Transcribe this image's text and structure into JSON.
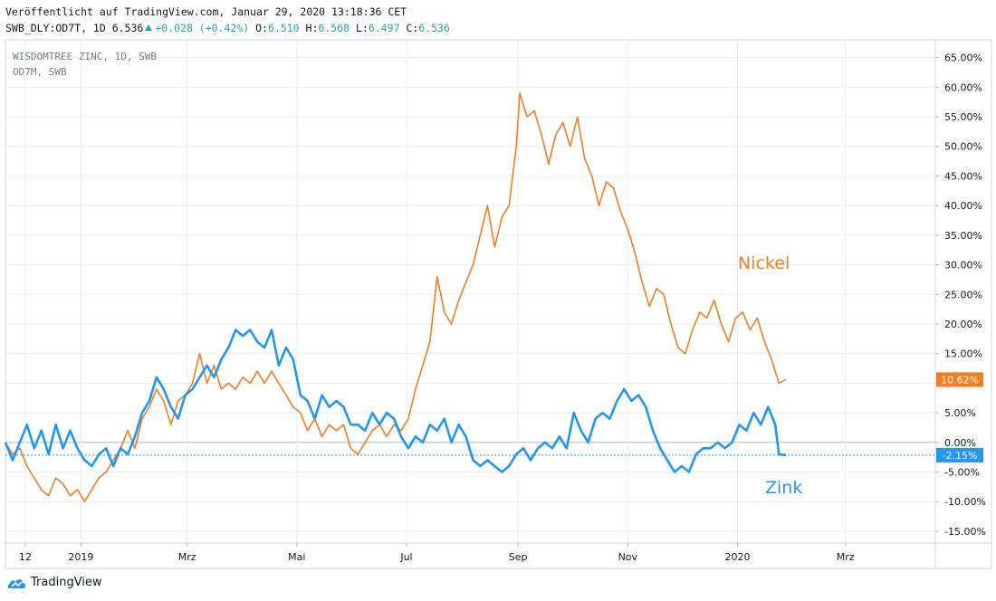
{
  "header": {
    "published": "Veröffentlicht auf TradingView.com, Januar 29, 2020 13:18:36 CET",
    "symbol_line": "SWB_DLY:OD7T, 1D 6.536",
    "change": "+0.028 (+0.42%)",
    "o_label": "O:",
    "o_value": "6.510",
    "h_label": "H:",
    "h_value": "6.568",
    "l_label": "L:",
    "l_value": "6.497",
    "c_label": "C:",
    "c_value": "6.536"
  },
  "legend": {
    "line1": "WISDOMTREE ZINC, 1D, SWB",
    "line2": "OD7M, SWB"
  },
  "brand": {
    "name": "TradingView"
  },
  "colors": {
    "nickel": "#f57c1f",
    "zink": "#2196f3",
    "grid": "#e9ecf2",
    "axis_text": "#131722",
    "baseline": "#b2b5be"
  },
  "chart_data": {
    "type": "line",
    "title": "",
    "x_axis": {
      "start": "2018-11-20",
      "end": "2020-04-20",
      "ticks": [
        {
          "date": "2018-12-01",
          "label": "12"
        },
        {
          "date": "2019-01-01",
          "label": "2019"
        },
        {
          "date": "2019-03-01",
          "label": "Mrz"
        },
        {
          "date": "2019-05-01",
          "label": "Mai"
        },
        {
          "date": "2019-07-01",
          "label": "Jul"
        },
        {
          "date": "2019-09-01",
          "label": "Sep"
        },
        {
          "date": "2019-11-01",
          "label": "Nov"
        },
        {
          "date": "2020-01-01",
          "label": "2020"
        },
        {
          "date": "2020-03-01",
          "label": "Mrz"
        }
      ]
    },
    "y_axis": {
      "unit": "%",
      "range": [
        -17,
        68
      ],
      "ticks": [
        65,
        60,
        55,
        50,
        45,
        40,
        35,
        30,
        25,
        20,
        15,
        10,
        5,
        0,
        -5,
        -10,
        -15
      ],
      "tick_labels": [
        "65.00%",
        "60.00%",
        "55.00%",
        "50.00%",
        "45.00%",
        "40.00%",
        "35.00%",
        "30.00%",
        "25.00%",
        "20.00%",
        "15.00%",
        "10.00%",
        "5.00%",
        "0.00%",
        "-5.00%",
        "-10.00%",
        "-15.00%"
      ]
    },
    "grid": true,
    "series": [
      {
        "name": "Nickel",
        "last_label": "10.62%",
        "points": [
          [
            "2018-11-20",
            0
          ],
          [
            "2018-11-24",
            -2
          ],
          [
            "2018-11-28",
            -1
          ],
          [
            "2018-12-02",
            -4
          ],
          [
            "2018-12-06",
            -6
          ],
          [
            "2018-12-10",
            -8
          ],
          [
            "2018-12-14",
            -9
          ],
          [
            "2018-12-18",
            -6
          ],
          [
            "2018-12-22",
            -7
          ],
          [
            "2018-12-26",
            -9
          ],
          [
            "2018-12-30",
            -8
          ],
          [
            "2019-01-03",
            -10
          ],
          [
            "2019-01-07",
            -8
          ],
          [
            "2019-01-11",
            -6
          ],
          [
            "2019-01-15",
            -5
          ],
          [
            "2019-01-19",
            -3
          ],
          [
            "2019-01-23",
            -1
          ],
          [
            "2019-01-27",
            2
          ],
          [
            "2019-01-31",
            -1
          ],
          [
            "2019-02-04",
            4
          ],
          [
            "2019-02-08",
            6
          ],
          [
            "2019-02-12",
            9
          ],
          [
            "2019-02-16",
            7
          ],
          [
            "2019-02-20",
            3
          ],
          [
            "2019-02-24",
            7
          ],
          [
            "2019-02-28",
            8
          ],
          [
            "2019-03-04",
            10
          ],
          [
            "2019-03-08",
            15
          ],
          [
            "2019-03-12",
            10
          ],
          [
            "2019-03-16",
            13
          ],
          [
            "2019-03-20",
            9
          ],
          [
            "2019-03-24",
            10
          ],
          [
            "2019-03-28",
            9
          ],
          [
            "2019-04-01",
            11
          ],
          [
            "2019-04-05",
            10
          ],
          [
            "2019-04-09",
            12
          ],
          [
            "2019-04-13",
            10
          ],
          [
            "2019-04-17",
            12
          ],
          [
            "2019-04-21",
            10
          ],
          [
            "2019-04-25",
            8
          ],
          [
            "2019-04-29",
            6
          ],
          [
            "2019-05-03",
            5
          ],
          [
            "2019-05-07",
            2
          ],
          [
            "2019-05-11",
            4
          ],
          [
            "2019-05-15",
            1
          ],
          [
            "2019-05-19",
            3
          ],
          [
            "2019-05-23",
            2
          ],
          [
            "2019-05-27",
            3
          ],
          [
            "2019-05-31",
            -1
          ],
          [
            "2019-06-04",
            -2
          ],
          [
            "2019-06-08",
            0
          ],
          [
            "2019-06-12",
            2
          ],
          [
            "2019-06-16",
            3
          ],
          [
            "2019-06-20",
            1
          ],
          [
            "2019-06-24",
            3
          ],
          [
            "2019-06-28",
            2
          ],
          [
            "2019-07-02",
            4
          ],
          [
            "2019-07-06",
            9
          ],
          [
            "2019-07-10",
            13
          ],
          [
            "2019-07-14",
            17
          ],
          [
            "2019-07-18",
            28
          ],
          [
            "2019-07-22",
            22
          ],
          [
            "2019-07-26",
            20
          ],
          [
            "2019-07-30",
            24
          ],
          [
            "2019-08-03",
            27
          ],
          [
            "2019-08-07",
            30
          ],
          [
            "2019-08-11",
            35
          ],
          [
            "2019-08-15",
            40
          ],
          [
            "2019-08-19",
            33
          ],
          [
            "2019-08-23",
            38
          ],
          [
            "2019-08-27",
            40
          ],
          [
            "2019-08-31",
            50
          ],
          [
            "2019-09-02",
            59
          ],
          [
            "2019-09-06",
            55
          ],
          [
            "2019-09-10",
            56
          ],
          [
            "2019-09-14",
            52
          ],
          [
            "2019-09-18",
            47
          ],
          [
            "2019-09-22",
            52
          ],
          [
            "2019-09-26",
            54
          ],
          [
            "2019-09-30",
            50
          ],
          [
            "2019-10-04",
            55
          ],
          [
            "2019-10-08",
            48
          ],
          [
            "2019-10-12",
            45
          ],
          [
            "2019-10-16",
            40
          ],
          [
            "2019-10-20",
            44
          ],
          [
            "2019-10-24",
            43
          ],
          [
            "2019-10-28",
            39
          ],
          [
            "2019-11-01",
            36
          ],
          [
            "2019-11-05",
            32
          ],
          [
            "2019-11-09",
            27
          ],
          [
            "2019-11-13",
            23
          ],
          [
            "2019-11-17",
            26
          ],
          [
            "2019-11-21",
            25
          ],
          [
            "2019-11-25",
            20
          ],
          [
            "2019-11-29",
            16
          ],
          [
            "2019-12-03",
            15
          ],
          [
            "2019-12-07",
            19
          ],
          [
            "2019-12-11",
            22
          ],
          [
            "2019-12-15",
            21
          ],
          [
            "2019-12-19",
            24
          ],
          [
            "2019-12-23",
            20
          ],
          [
            "2019-12-27",
            17
          ],
          [
            "2019-12-31",
            21
          ],
          [
            "2020-01-04",
            22
          ],
          [
            "2020-01-08",
            19
          ],
          [
            "2020-01-12",
            21
          ],
          [
            "2020-01-16",
            17
          ],
          [
            "2020-01-20",
            14
          ],
          [
            "2020-01-24",
            10
          ],
          [
            "2020-01-28",
            10.62
          ]
        ]
      },
      {
        "name": "Zink",
        "last_label": "-2.15%",
        "points": [
          [
            "2018-11-20",
            0
          ],
          [
            "2018-11-24",
            -3
          ],
          [
            "2018-11-28",
            0
          ],
          [
            "2018-12-02",
            3
          ],
          [
            "2018-12-06",
            -1
          ],
          [
            "2018-12-10",
            2
          ],
          [
            "2018-12-14",
            -2
          ],
          [
            "2018-12-18",
            3
          ],
          [
            "2018-12-22",
            -1
          ],
          [
            "2018-12-26",
            2
          ],
          [
            "2018-12-30",
            -1
          ],
          [
            "2019-01-03",
            -3
          ],
          [
            "2019-01-07",
            -4
          ],
          [
            "2019-01-11",
            -2
          ],
          [
            "2019-01-15",
            -1
          ],
          [
            "2019-01-19",
            -4
          ],
          [
            "2019-01-23",
            -1
          ],
          [
            "2019-01-27",
            -2
          ],
          [
            "2019-01-31",
            1
          ],
          [
            "2019-02-04",
            5
          ],
          [
            "2019-02-08",
            7
          ],
          [
            "2019-02-12",
            11
          ],
          [
            "2019-02-16",
            9
          ],
          [
            "2019-02-20",
            6
          ],
          [
            "2019-02-24",
            4
          ],
          [
            "2019-02-28",
            8
          ],
          [
            "2019-03-04",
            9
          ],
          [
            "2019-03-08",
            11
          ],
          [
            "2019-03-12",
            13
          ],
          [
            "2019-03-16",
            11
          ],
          [
            "2019-03-20",
            14
          ],
          [
            "2019-03-24",
            16
          ],
          [
            "2019-03-28",
            19
          ],
          [
            "2019-04-01",
            18
          ],
          [
            "2019-04-05",
            19
          ],
          [
            "2019-04-09",
            17
          ],
          [
            "2019-04-13",
            16
          ],
          [
            "2019-04-17",
            19
          ],
          [
            "2019-04-21",
            13
          ],
          [
            "2019-04-25",
            16
          ],
          [
            "2019-04-29",
            14
          ],
          [
            "2019-05-03",
            8
          ],
          [
            "2019-05-07",
            7
          ],
          [
            "2019-05-11",
            4
          ],
          [
            "2019-05-15",
            8
          ],
          [
            "2019-05-19",
            6
          ],
          [
            "2019-05-23",
            7
          ],
          [
            "2019-05-27",
            6
          ],
          [
            "2019-05-31",
            3
          ],
          [
            "2019-06-04",
            3
          ],
          [
            "2019-06-08",
            2
          ],
          [
            "2019-06-12",
            5
          ],
          [
            "2019-06-16",
            3
          ],
          [
            "2019-06-20",
            5
          ],
          [
            "2019-06-24",
            4
          ],
          [
            "2019-06-28",
            1
          ],
          [
            "2019-07-02",
            -1
          ],
          [
            "2019-07-06",
            1
          ],
          [
            "2019-07-10",
            0
          ],
          [
            "2019-07-14",
            3
          ],
          [
            "2019-07-18",
            2
          ],
          [
            "2019-07-22",
            4
          ],
          [
            "2019-07-26",
            0
          ],
          [
            "2019-07-30",
            3
          ],
          [
            "2019-08-03",
            1
          ],
          [
            "2019-08-07",
            -3
          ],
          [
            "2019-08-11",
            -4
          ],
          [
            "2019-08-15",
            -3
          ],
          [
            "2019-08-19",
            -4
          ],
          [
            "2019-08-23",
            -5
          ],
          [
            "2019-08-27",
            -4
          ],
          [
            "2019-08-31",
            -2
          ],
          [
            "2019-09-04",
            -1
          ],
          [
            "2019-09-08",
            -3
          ],
          [
            "2019-09-12",
            -1
          ],
          [
            "2019-09-16",
            0
          ],
          [
            "2019-09-20",
            -1
          ],
          [
            "2019-09-24",
            1
          ],
          [
            "2019-09-28",
            -1
          ],
          [
            "2019-10-02",
            5
          ],
          [
            "2019-10-06",
            2
          ],
          [
            "2019-10-10",
            0
          ],
          [
            "2019-10-14",
            4
          ],
          [
            "2019-10-18",
            5
          ],
          [
            "2019-10-22",
            4
          ],
          [
            "2019-10-26",
            7
          ],
          [
            "2019-10-30",
            9
          ],
          [
            "2019-11-03",
            7
          ],
          [
            "2019-11-07",
            8
          ],
          [
            "2019-11-11",
            6
          ],
          [
            "2019-11-15",
            2
          ],
          [
            "2019-11-19",
            -1
          ],
          [
            "2019-11-23",
            -3
          ],
          [
            "2019-11-27",
            -5
          ],
          [
            "2019-12-01",
            -4
          ],
          [
            "2019-12-05",
            -5
          ],
          [
            "2019-12-09",
            -2
          ],
          [
            "2019-12-13",
            -1
          ],
          [
            "2019-12-17",
            -1
          ],
          [
            "2019-12-21",
            0
          ],
          [
            "2019-12-25",
            -1
          ],
          [
            "2019-12-29",
            0
          ],
          [
            "2020-01-02",
            3
          ],
          [
            "2020-01-06",
            2
          ],
          [
            "2020-01-10",
            5
          ],
          [
            "2020-01-14",
            3
          ],
          [
            "2020-01-18",
            6
          ],
          [
            "2020-01-22",
            3
          ],
          [
            "2020-01-24",
            -2
          ],
          [
            "2020-01-28",
            -2.15
          ]
        ]
      }
    ],
    "annotations": [
      {
        "text": "Nickel",
        "series": "Nickel"
      },
      {
        "text": "Zink",
        "series": "Zink"
      }
    ]
  }
}
